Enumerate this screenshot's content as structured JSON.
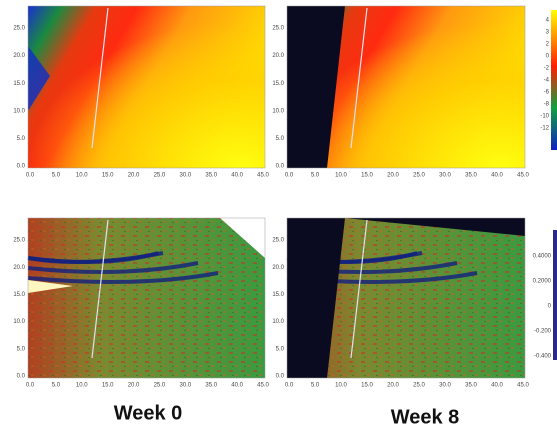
{
  "axes": {
    "x_ticks": [
      "0.0",
      "5.0",
      "10.0",
      "15.0",
      "20.0",
      "25.0",
      "30.0",
      "35.0",
      "40.0",
      "45.0"
    ],
    "y_ticks": [
      "0.0",
      "5.0",
      "10.0",
      "15.0",
      "20.0",
      "25.0"
    ]
  },
  "colorbar_top": {
    "ticks": [
      "4",
      "3",
      "2",
      "0",
      "-2",
      "-4",
      "-6",
      "-8",
      "-10",
      "-12"
    ]
  },
  "colorbar_bottom": {
    "ticks": [
      "0.4000",
      "0.2000",
      "0",
      "-0.200",
      "-0.400"
    ]
  },
  "captions": [
    "Week  0",
    "Week  8"
  ]
}
